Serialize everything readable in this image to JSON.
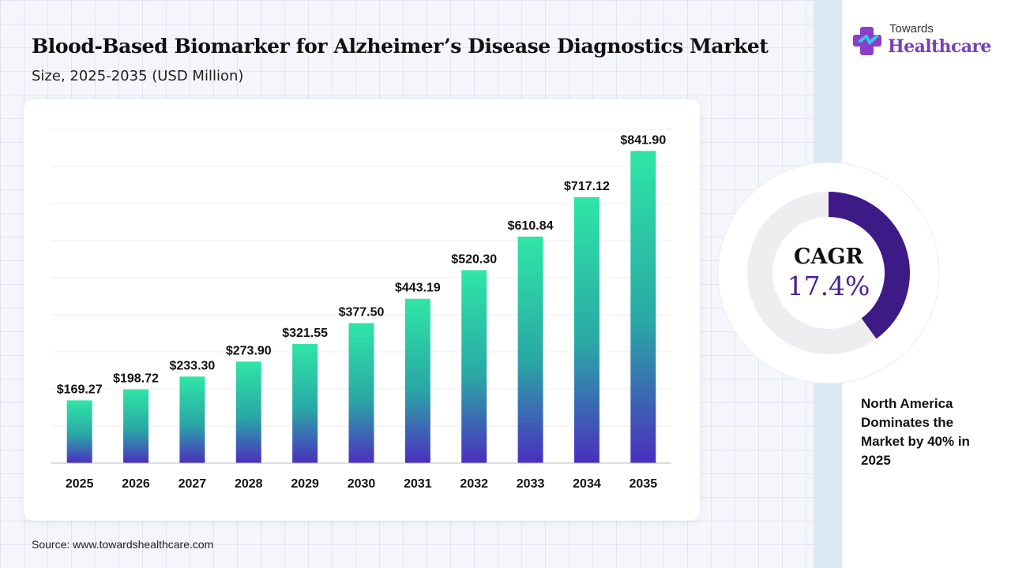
{
  "header": {
    "title": "Blood-Based Biomarker for Alzheimer’s Disease Diagnostics Market",
    "subtitle": "Size, 2025-2035 (USD Million)"
  },
  "logo": {
    "line1": "Towards",
    "line2": "Healthcare"
  },
  "cagr": {
    "label": "CAGR",
    "value": "17.4%",
    "fraction": 0.4
  },
  "note": "North America Dominates the Market by 40% in 2025",
  "source": "Source: www.towardshealthcare.com",
  "colors": {
    "bar_top": "#2ee6a6",
    "bar_bottom": "#4b2fbf",
    "donut_fill": "#3d1a86",
    "donut_track": "#eeeef0",
    "brand_purple": "#7a3fb8"
  },
  "chart_data": {
    "type": "bar",
    "title": "Blood-Based Biomarker for Alzheimer’s Disease Diagnostics Market",
    "categories": [
      "2025",
      "2026",
      "2027",
      "2028",
      "2029",
      "2030",
      "2031",
      "2032",
      "2033",
      "2034",
      "2035"
    ],
    "values": [
      169.27,
      198.72,
      233.3,
      273.9,
      321.55,
      377.5,
      443.19,
      520.3,
      610.84,
      717.12,
      841.9
    ],
    "value_labels": [
      "$169.27",
      "$198.72",
      "$233.30",
      "$273.90",
      "$321.55",
      "$377.50",
      "$443.19",
      "$520.30",
      "$610.84",
      "$717.12",
      "$841.90"
    ],
    "xlabel": "",
    "ylabel": "",
    "ylim": [
      0,
      900
    ],
    "grid": true
  }
}
